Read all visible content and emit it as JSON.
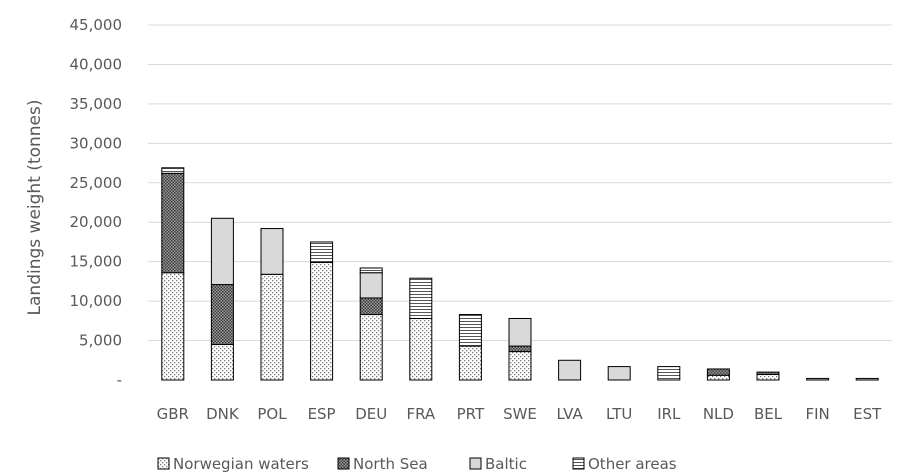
{
  "chart_data": {
    "type": "bar",
    "stacked": true,
    "title": "",
    "xlabel": "",
    "ylabel": "Landings weight (tonnes)",
    "ylim": [
      0,
      45000
    ],
    "yticks": [
      0,
      5000,
      10000,
      15000,
      20000,
      25000,
      30000,
      35000,
      40000,
      45000
    ],
    "ytick_labels": [
      "-",
      "5,000",
      "10,000",
      "15,000",
      "20,000",
      "25,000",
      "30,000",
      "35,000",
      "40,000",
      "45,000"
    ],
    "grid": "horizontal",
    "legend_position": "bottom",
    "categories": [
      "GBR",
      "DNK",
      "POL",
      "ESP",
      "DEU",
      "FRA",
      "PRT",
      "SWE",
      "LVA",
      "LTU",
      "IRL",
      "NLD",
      "BEL",
      "FIN",
      "EST"
    ],
    "series": [
      {
        "name": "Norwegian waters",
        "pattern": "dots",
        "values": [
          13600,
          4500,
          13400,
          14900,
          8300,
          7800,
          4300,
          3600,
          0,
          0,
          0,
          600,
          700,
          0,
          0
        ]
      },
      {
        "name": "North Sea",
        "pattern": "dense-dots",
        "values": [
          12600,
          7600,
          0,
          0,
          2100,
          0,
          0,
          700,
          0,
          0,
          0,
          800,
          300,
          0,
          0
        ]
      },
      {
        "name": "Baltic",
        "pattern": "solid-light",
        "values": [
          0,
          8400,
          5800,
          0,
          3200,
          0,
          0,
          3500,
          2500,
          1700,
          0,
          0,
          0,
          200,
          200
        ]
      },
      {
        "name": "Other areas",
        "pattern": "horizontal-lines",
        "values": [
          700,
          0,
          0,
          2600,
          600,
          5100,
          4000,
          0,
          0,
          0,
          1700,
          0,
          0,
          0,
          0
        ]
      }
    ]
  }
}
